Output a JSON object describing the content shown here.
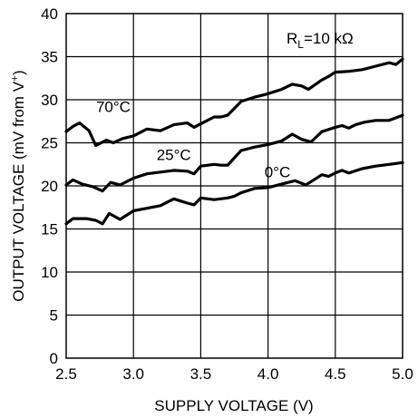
{
  "chart_data": {
    "type": "line",
    "xlabel": "SUPPLY VOLTAGE (V)",
    "ylabel_main": "OUTPUT VOLTAGE (mV from V",
    "ylabel_sup": "+",
    "ylabel_close": ")",
    "xlim": [
      2.5,
      5.0
    ],
    "ylim": [
      0,
      40
    ],
    "xticks": [
      "2.5",
      "3.0",
      "3.5",
      "4.0",
      "4.5",
      "5.0"
    ],
    "yticks": [
      "0",
      "5",
      "10",
      "15",
      "20",
      "25",
      "30",
      "35",
      "40"
    ],
    "grid": true,
    "annotation": {
      "r_symbol": "R",
      "r_sub": "L",
      "r_value": "=10 kΩ"
    },
    "series": [
      {
        "name": "70°C",
        "x": [
          2.5,
          2.55,
          2.6,
          2.67,
          2.72,
          2.8,
          2.85,
          2.92,
          3.0,
          3.1,
          3.2,
          3.3,
          3.4,
          3.45,
          3.5,
          3.6,
          3.65,
          3.7,
          3.8,
          3.9,
          3.95,
          4.0,
          4.1,
          4.18,
          4.25,
          4.3,
          4.4,
          4.45,
          4.5,
          4.6,
          4.7,
          4.8,
          4.9,
          4.95,
          5.0
        ],
        "y": [
          26.3,
          26.9,
          27.3,
          26.4,
          24.7,
          25.3,
          25.0,
          25.5,
          25.8,
          26.6,
          26.4,
          27.1,
          27.3,
          26.8,
          27.2,
          28.0,
          28.0,
          28.2,
          29.8,
          30.3,
          30.5,
          30.7,
          31.2,
          31.8,
          31.6,
          31.2,
          32.3,
          32.7,
          33.2,
          33.3,
          33.5,
          33.9,
          34.3,
          34.1,
          34.7
        ]
      },
      {
        "name": "25°C",
        "x": [
          2.5,
          2.55,
          2.62,
          2.7,
          2.77,
          2.83,
          2.9,
          3.0,
          3.1,
          3.2,
          3.3,
          3.4,
          3.45,
          3.5,
          3.6,
          3.65,
          3.7,
          3.8,
          3.9,
          4.0,
          4.1,
          4.18,
          4.25,
          4.32,
          4.4,
          4.5,
          4.55,
          4.6,
          4.65,
          4.72,
          4.8,
          4.9,
          5.0
        ],
        "y": [
          20.1,
          20.7,
          20.2,
          19.9,
          19.4,
          20.4,
          20.1,
          20.9,
          21.4,
          21.6,
          21.8,
          21.7,
          21.4,
          22.3,
          22.5,
          22.4,
          22.4,
          24.1,
          24.5,
          24.8,
          25.2,
          26.0,
          25.4,
          25.1,
          26.3,
          26.8,
          27.0,
          26.7,
          27.1,
          27.4,
          27.6,
          27.6,
          28.2
        ]
      },
      {
        "name": "0°C",
        "x": [
          2.5,
          2.55,
          2.65,
          2.72,
          2.77,
          2.82,
          2.9,
          3.0,
          3.1,
          3.2,
          3.3,
          3.4,
          3.45,
          3.5,
          3.6,
          3.7,
          3.75,
          3.8,
          3.9,
          4.0,
          4.1,
          4.2,
          4.28,
          4.32,
          4.4,
          4.45,
          4.5,
          4.55,
          4.6,
          4.7,
          4.8,
          4.9,
          5.0
        ],
        "y": [
          15.6,
          16.2,
          16.2,
          16.0,
          15.6,
          16.8,
          16.1,
          17.1,
          17.4,
          17.7,
          18.5,
          18.0,
          17.8,
          18.6,
          18.4,
          18.6,
          18.8,
          19.2,
          19.7,
          19.8,
          20.2,
          20.6,
          20.1,
          20.5,
          21.3,
          21.1,
          21.5,
          21.8,
          21.5,
          22.0,
          22.3,
          22.5,
          22.7
        ]
      }
    ],
    "series_labels": [
      {
        "text": "70°C",
        "x": 2.85,
        "y": 28.6
      },
      {
        "text": "25°C",
        "x": 3.3,
        "y": 23.0
      },
      {
        "text": "0°C",
        "x": 4.07,
        "y": 21.0
      }
    ]
  }
}
